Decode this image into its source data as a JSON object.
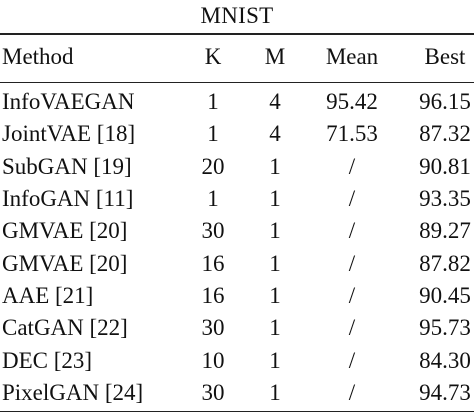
{
  "title": "MNIST",
  "columns": [
    "Method",
    "K",
    "M",
    "Mean",
    "Best"
  ],
  "rows": [
    {
      "method": "InfoVAEGAN",
      "k": "1",
      "m": "4",
      "mean": "95.42",
      "best": "96.15"
    },
    {
      "method": "JointVAE [18]",
      "k": "1",
      "m": "4",
      "mean": "71.53",
      "best": "87.32"
    },
    {
      "method": "SubGAN [19]",
      "k": "20",
      "m": "1",
      "mean": "/",
      "best": "90.81"
    },
    {
      "method": "InfoGAN [11]",
      "k": "1",
      "m": "1",
      "mean": "/",
      "best": "93.35"
    },
    {
      "method": "GMVAE [20]",
      "k": "30",
      "m": "1",
      "mean": "/",
      "best": "89.27"
    },
    {
      "method": "GMVAE [20]",
      "k": "16",
      "m": "1",
      "mean": "/",
      "best": "87.82"
    },
    {
      "method": "AAE [21]",
      "k": "16",
      "m": "1",
      "mean": "/",
      "best": "90.45"
    },
    {
      "method": "CatGAN [22]",
      "k": "30",
      "m": "1",
      "mean": "/",
      "best": "95.73"
    },
    {
      "method": "DEC [23]",
      "k": "10",
      "m": "1",
      "mean": "/",
      "best": "84.30"
    },
    {
      "method": "PixelGAN [24]",
      "k": "30",
      "m": "1",
      "mean": "/",
      "best": "94.73"
    }
  ]
}
